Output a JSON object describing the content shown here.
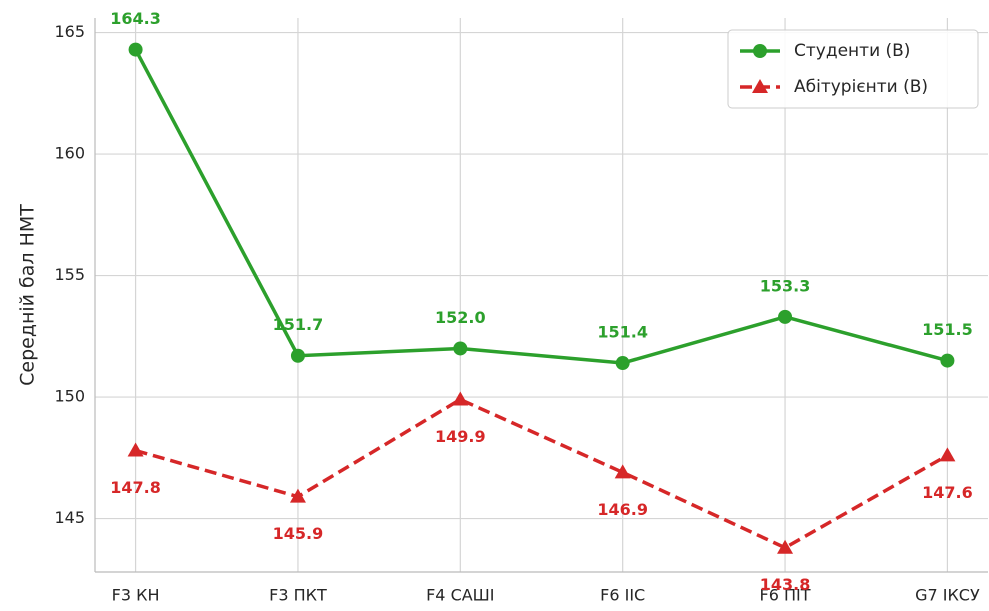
{
  "chart_data": {
    "type": "line",
    "ylabel": "Середній бал НМТ",
    "categories": [
      "F3 КН",
      "F3 ПКТ",
      "F4 САШІ",
      "F6 ІІС",
      "F6 ПІТ",
      "G7 ІКСУ"
    ],
    "series": [
      {
        "name": "Студенти (B)",
        "color": "#2ca02c",
        "marker": "circle",
        "linestyle": "solid",
        "values": [
          164.3,
          151.7,
          152.0,
          151.4,
          153.3,
          151.5
        ],
        "value_labels": [
          "164.3",
          "151.7",
          "152.0",
          "151.4",
          "153.3",
          "151.5"
        ]
      },
      {
        "name": "Абітурієнти (B)",
        "color": "#d62728",
        "marker": "triangle",
        "linestyle": "dashed",
        "values": [
          147.8,
          145.9,
          149.9,
          146.9,
          143.8,
          147.6
        ],
        "value_labels": [
          "147.8",
          "145.9",
          "149.9",
          "146.9",
          "143.8",
          "147.6"
        ]
      }
    ],
    "ylim": [
      142.8,
      165.6
    ],
    "yticks": [
      145,
      150,
      155,
      160,
      165
    ],
    "grid": true,
    "legend": "upper right"
  }
}
